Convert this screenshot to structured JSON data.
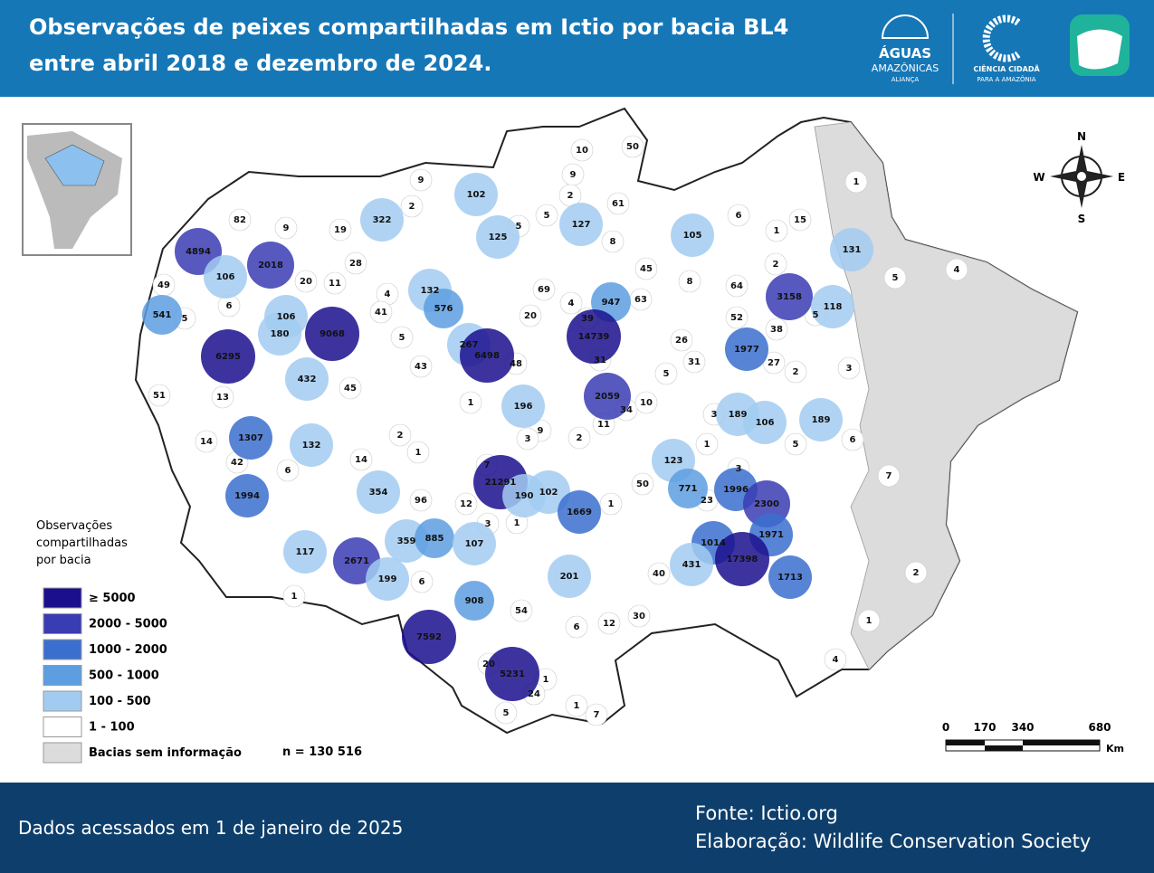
{
  "header": {
    "title_lines": [
      "Observações de peixes compartilhadas em Ictio por bacia BL4",
      "entre abril 2018 e dezembro de 2024."
    ],
    "logo_aguas": [
      "ÁGUAS",
      "AMAZÔNICAS",
      "ALIANÇA"
    ],
    "logo_ciencia": [
      "CIÊNCIA CIDADÃ",
      "PARA A AMAZÔNIA"
    ]
  },
  "map": {
    "basins": [
      82,
      9,
      19,
      322,
      9,
      2,
      102,
      10,
      50,
      9,
      2,
      5,
      61,
      127,
      5,
      125,
      8,
      105,
      6,
      15,
      1,
      131,
      1,
      5,
      4,
      2,
      4894,
      2018,
      106,
      28,
      20,
      11,
      4,
      132,
      45,
      8,
      64,
      3158,
      49,
      6,
      541,
      5,
      106,
      41,
      576,
      69,
      4,
      947,
      63,
      52,
      118,
      5,
      180,
      9068,
      5,
      20,
      39,
      14739,
      38,
      6295,
      267,
      6498,
      48,
      31,
      26,
      1977,
      31,
      27,
      2,
      3,
      5,
      432,
      45,
      43,
      13,
      51,
      2059,
      34,
      10,
      1,
      196,
      189,
      3,
      106,
      189,
      11,
      9,
      3,
      2,
      2,
      1307,
      132,
      1,
      14,
      1,
      5,
      6,
      42,
      6,
      14,
      7,
      123,
      3,
      7,
      1994,
      354,
      96,
      12,
      21291,
      190,
      102,
      50,
      771,
      1996,
      23,
      2300,
      1,
      1669,
      3,
      1,
      1971,
      117,
      359,
      885,
      107,
      1014,
      2671,
      17398,
      431,
      1713,
      2,
      201,
      40,
      199,
      6,
      1,
      908,
      54,
      30,
      12,
      6,
      1,
      7592,
      4,
      20,
      5231,
      1,
      24,
      5,
      7,
      1
    ],
    "compass": [
      "N",
      "W",
      "E",
      "S"
    ],
    "scale": {
      "labels": [
        "0",
        "170",
        "340",
        "680"
      ],
      "unit": "Km"
    }
  },
  "legend": {
    "title_lines": [
      "Observações",
      "compartilhadas",
      "por bacia"
    ],
    "items": [
      {
        "label": "≥ 5000",
        "color": "#1b0f8e"
      },
      {
        "label": "2000 - 5000",
        "color": "#3a3cb4"
      },
      {
        "label": "1000 - 2000",
        "color": "#3b6fcf"
      },
      {
        "label": "500 - 1000",
        "color": "#5d9de1"
      },
      {
        "label": "100 - 500",
        "color": "#a2cbf1"
      },
      {
        "label": "1 - 100",
        "color": "#ffffff"
      },
      {
        "label": "Bacias sem informação",
        "color": "#dcdcdc"
      }
    ],
    "total": "n = 130 516"
  },
  "footer": {
    "accessed": "Dados acessados em 1 de janeiro de 2025",
    "source": "Fonte: Ictio.org",
    "author": "Elaboração: Wildlife Conservation Society"
  }
}
